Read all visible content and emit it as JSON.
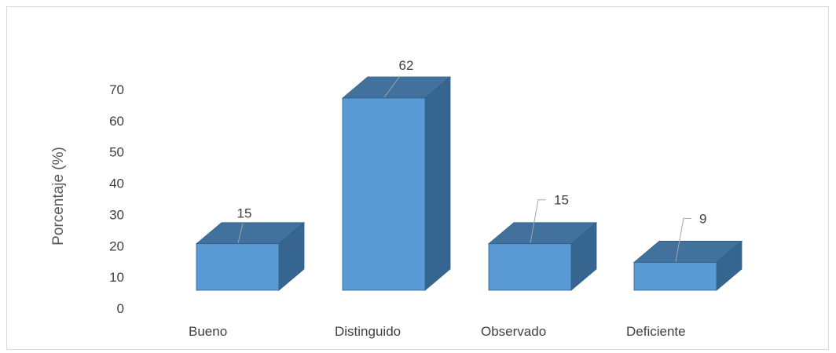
{
  "chart_data": {
    "type": "bar",
    "categories": [
      "Bueno",
      "Distinguido",
      "Observado",
      "Deficiente"
    ],
    "values": [
      15,
      62,
      15,
      9
    ],
    "data_labels": [
      "15",
      "62",
      "15",
      "9"
    ],
    "title": "",
    "xlabel": "",
    "ylabel": "Porcentaje (%)",
    "ylim": [
      0,
      70
    ],
    "yticks": [
      "0",
      "10",
      "20",
      "30",
      "40",
      "50",
      "60",
      "70"
    ],
    "grid": false,
    "legend": "none",
    "style": "3d-column",
    "colors": {
      "front": "#5b9bd5",
      "top": "#41719c",
      "side": "#36658f",
      "edge": "#2e5f8a",
      "leader": "#a6a6a6"
    }
  }
}
